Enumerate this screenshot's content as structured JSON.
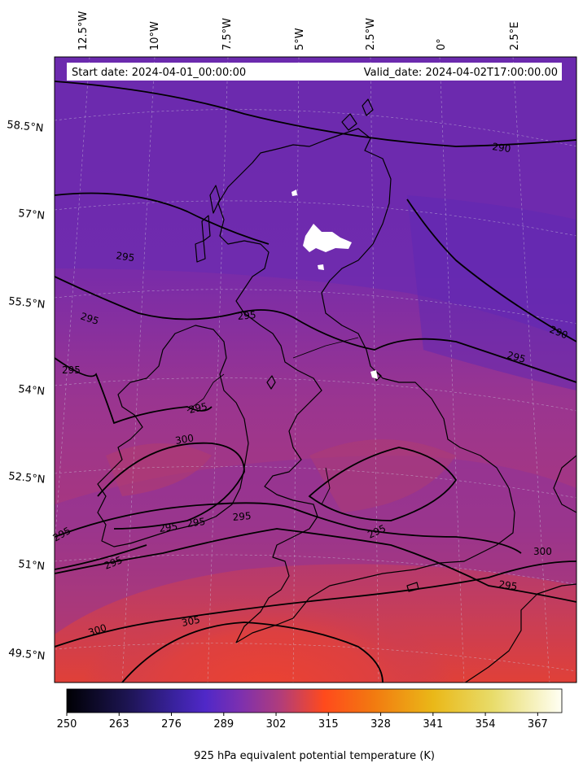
{
  "header": {
    "start_date": "Start date: 2024-04-01_00:00:00",
    "valid_date": "Valid_date: 2024-04-02T17:00:00.00"
  },
  "longitude_labels": [
    "12.5°W",
    "10°W",
    "7.5°W",
    "5°W",
    "2.5°W",
    "0°",
    "2.5°E"
  ],
  "latitude_labels": [
    "58.5°N",
    "57°N",
    "55.5°N",
    "54°N",
    "52.5°N",
    "51°N",
    "49.5°N"
  ],
  "contour_labels": [
    "290",
    "290",
    "295",
    "295",
    "295",
    "295",
    "295",
    "295",
    "295",
    "295",
    "295",
    "295",
    "295",
    "295",
    "295",
    "300",
    "300",
    "300",
    "305"
  ],
  "colorbar": {
    "ticks": [
      "250",
      "263",
      "276",
      "289",
      "302",
      "315",
      "328",
      "341",
      "354",
      "367"
    ],
    "label": "925 hPa equivalent potential temperature (K)",
    "stops": [
      "#000004",
      "#2a1a6e",
      "#4f28c8",
      "#8b35a8",
      "#b8406f",
      "#ff4a1c",
      "#ff7a10",
      "#f0a818",
      "#e8d24a",
      "#fffff0"
    ],
    "range": [
      250,
      373
    ]
  },
  "colors": {
    "field_purple": "#6a2aa8",
    "field_magenta": "#9a3590",
    "field_red": "#e24037",
    "contour": "#000000",
    "coastline": "#000000"
  }
}
